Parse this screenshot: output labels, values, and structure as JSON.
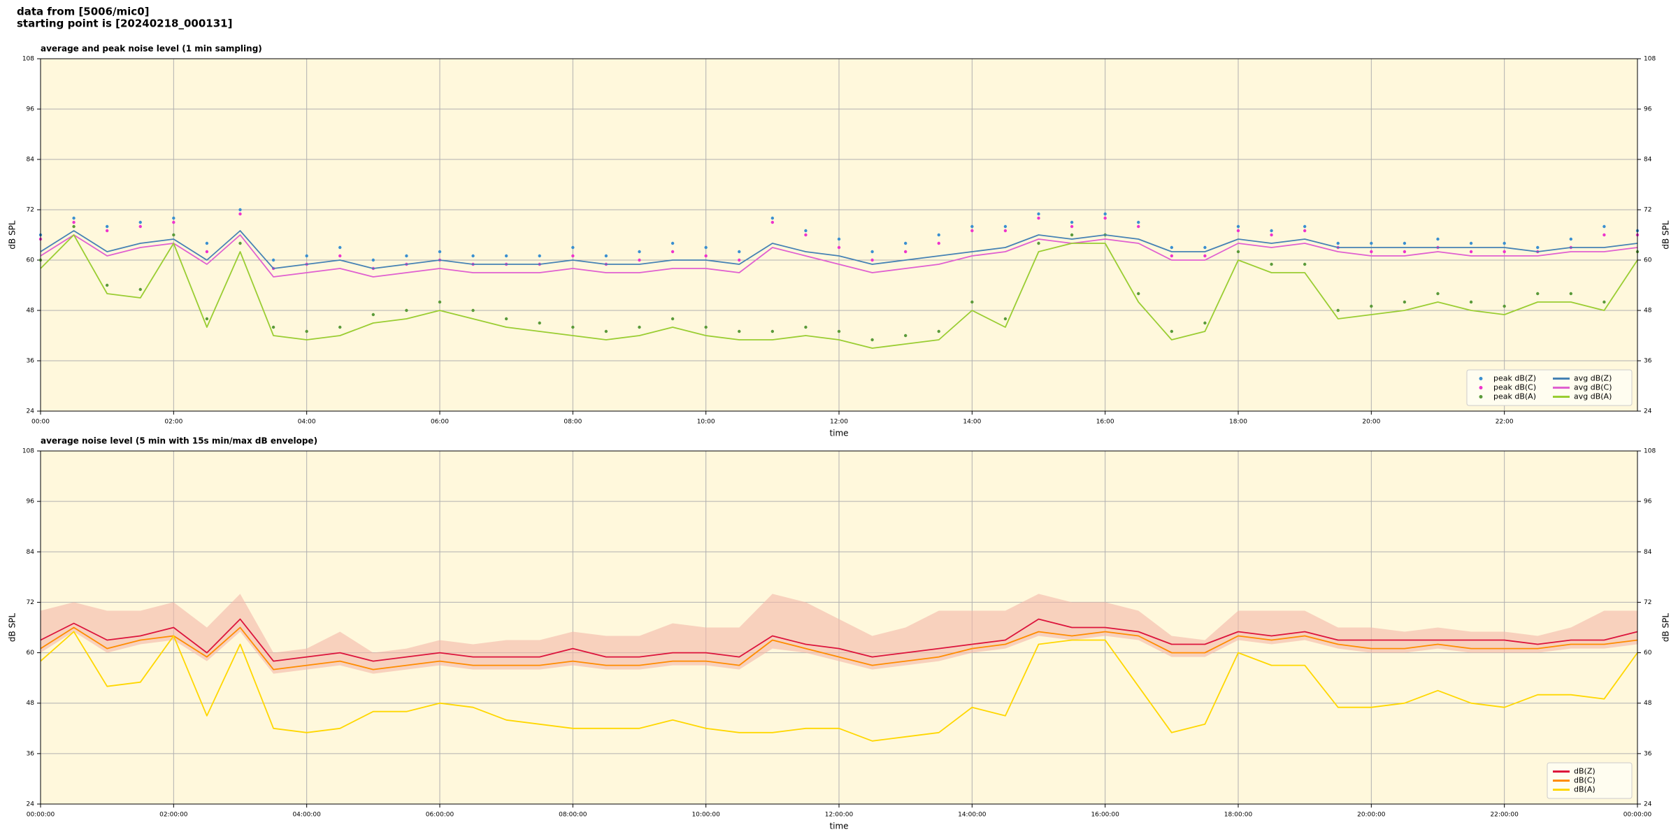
{
  "header": {
    "line1": "data from [5006/mic0]",
    "line2": "starting point is [20240218_000131]"
  },
  "chart_data": [
    {
      "type": "line",
      "title": "average and peak noise level (1 min sampling)",
      "xlabel": "time",
      "ylabel": "dB SPL",
      "x": [
        0,
        0.5,
        1,
        1.5,
        2,
        2.5,
        3,
        3.5,
        4,
        4.5,
        5,
        5.5,
        6,
        6.5,
        7,
        7.5,
        8,
        8.5,
        9,
        9.5,
        10,
        10.5,
        11,
        11.5,
        12,
        12.5,
        13,
        13.5,
        14,
        14.5,
        15,
        15.5,
        16,
        16.5,
        17,
        17.5,
        18,
        18.5,
        19,
        19.5,
        20,
        20.5,
        21,
        21.5,
        22,
        22.5,
        23,
        23.5,
        24
      ],
      "xlim": [
        0,
        24
      ],
      "xticks": [
        {
          "value": 0,
          "label": "00:00"
        },
        {
          "value": 2,
          "label": "02:00"
        },
        {
          "value": 4,
          "label": "04:00"
        },
        {
          "value": 6,
          "label": "06:00"
        },
        {
          "value": 8,
          "label": "08:00"
        },
        {
          "value": 10,
          "label": "10:00"
        },
        {
          "value": 12,
          "label": "12:00"
        },
        {
          "value": 14,
          "label": "14:00"
        },
        {
          "value": 16,
          "label": "16:00"
        },
        {
          "value": 18,
          "label": "18:00"
        },
        {
          "value": 20,
          "label": "20:00"
        },
        {
          "value": 22,
          "label": "22:00"
        }
      ],
      "ylim": [
        24,
        108
      ],
      "yticks": [
        24,
        36,
        48,
        60,
        72,
        84,
        96,
        108
      ],
      "grid": true,
      "legend": "lower right",
      "legend_columns": 2,
      "series": [
        {
          "name": "peak dB(Z)",
          "type": "scatter",
          "color": "#3a8fd0",
          "values": [
            66,
            70,
            68,
            69,
            70,
            64,
            72,
            60,
            61,
            63,
            60,
            61,
            62,
            61,
            61,
            61,
            63,
            61,
            62,
            64,
            63,
            62,
            70,
            67,
            65,
            62,
            64,
            66,
            68,
            68,
            71,
            69,
            71,
            69,
            63,
            63,
            68,
            67,
            68,
            64,
            64,
            64,
            65,
            64,
            64,
            63,
            65,
            68,
            67
          ]
        },
        {
          "name": "peak dB(C)",
          "type": "scatter",
          "color": "#ee33cc",
          "values": [
            65,
            69,
            67,
            68,
            69,
            62,
            71,
            58,
            59,
            61,
            58,
            59,
            60,
            59,
            59,
            59,
            61,
            59,
            60,
            62,
            61,
            60,
            69,
            66,
            63,
            60,
            62,
            64,
            67,
            67,
            70,
            68,
            70,
            68,
            61,
            61,
            67,
            66,
            67,
            63,
            62,
            62,
            63,
            62,
            62,
            62,
            63,
            66,
            66
          ]
        },
        {
          "name": "peak dB(A)",
          "type": "scatter",
          "color": "#5a9a3a",
          "values": [
            60,
            68,
            54,
            53,
            66,
            46,
            64,
            44,
            43,
            44,
            47,
            48,
            50,
            48,
            46,
            45,
            44,
            43,
            44,
            46,
            44,
            43,
            43,
            44,
            43,
            41,
            42,
            43,
            50,
            46,
            64,
            66,
            66,
            52,
            43,
            45,
            62,
            59,
            59,
            48,
            49,
            50,
            52,
            50,
            49,
            52,
            52,
            50,
            62
          ]
        },
        {
          "name": "avg dB(Z)",
          "type": "line",
          "color": "#4682b4",
          "values": [
            62,
            67,
            62,
            64,
            65,
            60,
            67,
            58,
            59,
            60,
            58,
            59,
            60,
            59,
            59,
            59,
            60,
            59,
            59,
            60,
            60,
            59,
            64,
            62,
            61,
            59,
            60,
            61,
            62,
            63,
            66,
            65,
            66,
            65,
            62,
            62,
            65,
            64,
            65,
            63,
            63,
            63,
            63,
            63,
            63,
            62,
            63,
            63,
            64
          ]
        },
        {
          "name": "avg dB(C)",
          "type": "line",
          "color": "#e060d0",
          "values": [
            61,
            66,
            61,
            63,
            64,
            59,
            66,
            56,
            57,
            58,
            56,
            57,
            58,
            57,
            57,
            57,
            58,
            57,
            57,
            58,
            58,
            57,
            63,
            61,
            59,
            57,
            58,
            59,
            61,
            62,
            65,
            64,
            65,
            64,
            60,
            60,
            64,
            63,
            64,
            62,
            61,
            61,
            62,
            61,
            61,
            61,
            62,
            62,
            63
          ]
        },
        {
          "name": "avg dB(A)",
          "type": "line",
          "color": "#9acd32",
          "values": [
            58,
            66,
            52,
            51,
            64,
            44,
            62,
            42,
            41,
            42,
            45,
            46,
            48,
            46,
            44,
            43,
            42,
            41,
            42,
            44,
            42,
            41,
            41,
            42,
            41,
            39,
            40,
            41,
            48,
            44,
            62,
            64,
            64,
            50,
            41,
            43,
            60,
            57,
            57,
            46,
            47,
            48,
            50,
            48,
            47,
            50,
            50,
            48,
            60
          ]
        }
      ]
    },
    {
      "type": "line",
      "title": "average noise level (5 min with 15s min/max dB envelope)",
      "xlabel": "time",
      "ylabel": "dB SPL",
      "x": [
        0,
        0.5,
        1,
        1.5,
        2,
        2.5,
        3,
        3.5,
        4,
        4.5,
        5,
        5.5,
        6,
        6.5,
        7,
        7.5,
        8,
        8.5,
        9,
        9.5,
        10,
        10.5,
        11,
        11.5,
        12,
        12.5,
        13,
        13.5,
        14,
        14.5,
        15,
        15.5,
        16,
        16.5,
        17,
        17.5,
        18,
        18.5,
        19,
        19.5,
        20,
        20.5,
        21,
        21.5,
        22,
        22.5,
        23,
        23.5,
        24
      ],
      "xlim": [
        0,
        24
      ],
      "xticks": [
        {
          "value": 0,
          "label": "00:00:00"
        },
        {
          "value": 2,
          "label": "02:00:00"
        },
        {
          "value": 4,
          "label": "04:00:00"
        },
        {
          "value": 6,
          "label": "06:00:00"
        },
        {
          "value": 8,
          "label": "08:00:00"
        },
        {
          "value": 10,
          "label": "10:00:00"
        },
        {
          "value": 12,
          "label": "12:00:00"
        },
        {
          "value": 14,
          "label": "14:00:00"
        },
        {
          "value": 16,
          "label": "16:00:00"
        },
        {
          "value": 18,
          "label": "18:00:00"
        },
        {
          "value": 20,
          "label": "20:00:00"
        },
        {
          "value": 22,
          "label": "22:00:00"
        },
        {
          "value": 24,
          "label": "00:00:00"
        }
      ],
      "ylim": [
        24,
        108
      ],
      "yticks": [
        24,
        36,
        48,
        60,
        72,
        84,
        96,
        108
      ],
      "grid": true,
      "legend": "lower right",
      "legend_columns": 1,
      "series": [
        {
          "name": "dB(Z)",
          "type": "line",
          "color": "#dc143c",
          "values": [
            63,
            67,
            63,
            64,
            66,
            60,
            68,
            58,
            59,
            60,
            58,
            59,
            60,
            59,
            59,
            59,
            61,
            59,
            59,
            60,
            60,
            59,
            64,
            62,
            61,
            59,
            60,
            61,
            62,
            63,
            68,
            66,
            66,
            65,
            62,
            62,
            65,
            64,
            65,
            63,
            63,
            63,
            63,
            63,
            63,
            62,
            63,
            63,
            65
          ],
          "envelope_color": "#f4b8a8",
          "envelope": {
            "high": [
              70,
              72,
              70,
              70,
              72,
              66,
              74,
              60,
              61,
              65,
              60,
              61,
              63,
              62,
              63,
              63,
              65,
              64,
              64,
              67,
              66,
              66,
              74,
              72,
              68,
              64,
              66,
              70,
              70,
              70,
              74,
              72,
              72,
              70,
              64,
              63,
              70,
              70,
              70,
              66,
              66,
              65,
              66,
              65,
              65,
              64,
              66,
              70,
              70
            ],
            "low": [
              60,
              65,
              60,
              62,
              63,
              58,
              65,
              55,
              56,
              57,
              55,
              56,
              57,
              56,
              56,
              56,
              57,
              56,
              56,
              57,
              57,
              56,
              61,
              60,
              58,
              56,
              57,
              58,
              60,
              61,
              64,
              63,
              64,
              63,
              59,
              59,
              63,
              62,
              63,
              61,
              60,
              60,
              61,
              60,
              60,
              60,
              61,
              61,
              62
            ]
          }
        },
        {
          "name": "dB(C)",
          "type": "line",
          "color": "#ff8c00",
          "values": [
            61,
            66,
            61,
            63,
            64,
            59,
            66,
            56,
            57,
            58,
            56,
            57,
            58,
            57,
            57,
            57,
            58,
            57,
            57,
            58,
            58,
            57,
            63,
            61,
            59,
            57,
            58,
            59,
            61,
            62,
            65,
            64,
            65,
            64,
            60,
            60,
            64,
            63,
            64,
            62,
            61,
            61,
            62,
            61,
            61,
            61,
            62,
            62,
            63
          ]
        },
        {
          "name": "dB(A)",
          "type": "line",
          "color": "#ffd700",
          "values": [
            58,
            65,
            52,
            53,
            64,
            45,
            62,
            42,
            41,
            42,
            46,
            46,
            48,
            47,
            44,
            43,
            42,
            42,
            42,
            44,
            42,
            41,
            41,
            42,
            42,
            39,
            40,
            41,
            47,
            45,
            62,
            63,
            63,
            52,
            41,
            43,
            60,
            57,
            57,
            47,
            47,
            48,
            51,
            48,
            47,
            50,
            50,
            49,
            60
          ]
        }
      ]
    }
  ]
}
